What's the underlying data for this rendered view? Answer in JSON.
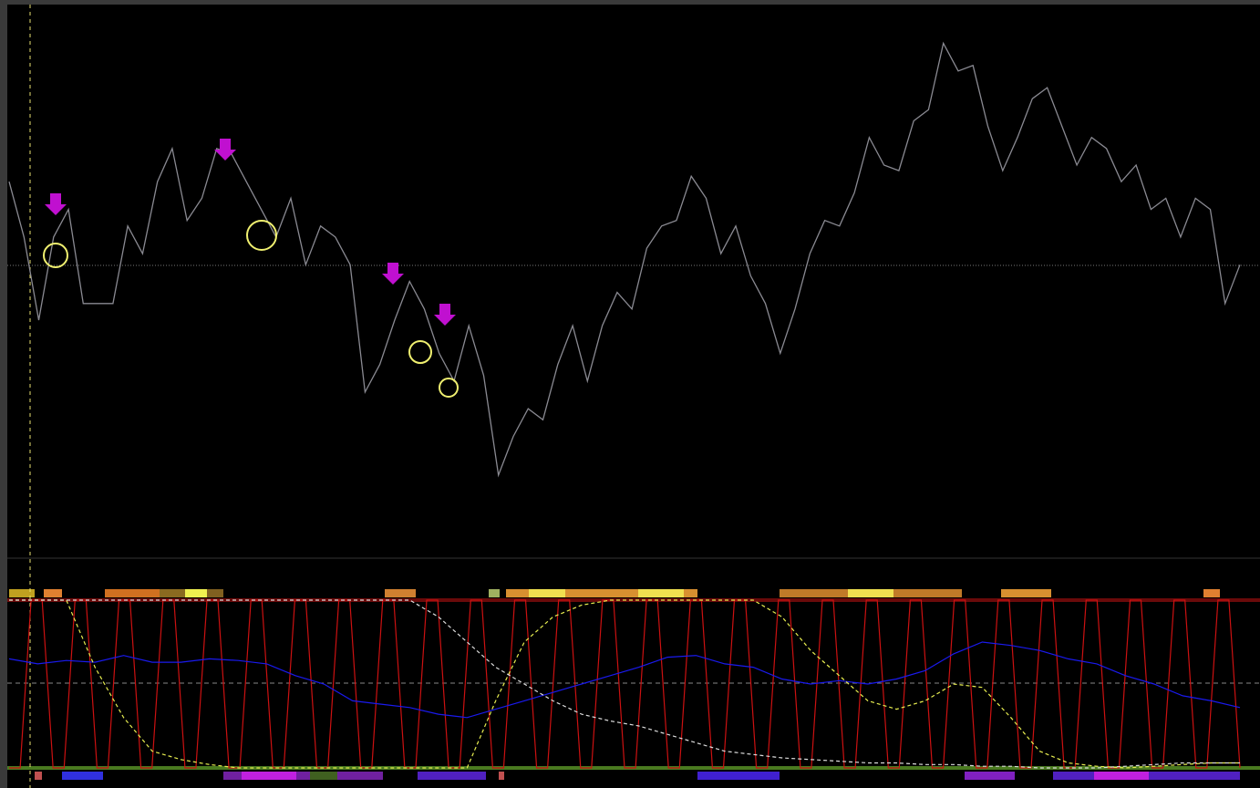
{
  "chart_data": [
    {
      "type": "line",
      "ylim": [
        0,
        100
      ],
      "series": [
        {
          "color": "#8a8a92",
          "values": [
            68,
            58,
            43,
            58,
            63,
            46,
            46,
            46,
            60,
            55,
            68,
            74,
            61,
            65,
            74,
            73,
            68,
            63,
            58,
            65,
            53,
            60,
            58,
            53,
            30,
            35,
            43,
            50,
            45,
            37,
            32,
            42,
            33,
            15,
            22,
            27,
            25,
            35,
            42,
            32,
            42,
            48,
            45,
            56,
            60,
            61,
            69,
            65,
            55,
            60,
            51,
            46,
            37,
            45,
            55,
            61,
            60,
            66,
            76,
            71,
            70,
            79,
            81,
            93,
            88,
            89,
            78,
            70,
            76,
            83,
            85,
            78,
            71,
            76,
            74,
            68,
            71,
            63,
            65,
            58,
            65,
            63,
            46,
            53
          ]
        }
      ]
    },
    {
      "type": "line",
      "ylim": [
        0,
        100
      ],
      "series": [
        {
          "color": "#cc1111",
          "values": [
            0,
            0,
            100,
            100,
            0,
            0,
            100,
            100,
            0,
            0,
            100,
            100,
            0,
            0,
            100,
            100,
            0,
            0,
            100,
            100,
            0,
            0,
            100,
            100,
            0,
            0,
            100,
            100,
            0,
            0,
            100,
            100,
            0,
            0,
            100,
            100,
            0,
            0,
            100,
            100,
            0,
            0,
            100,
            100,
            0,
            0,
            100,
            100,
            0,
            0,
            100,
            100,
            0,
            0,
            100,
            100,
            0,
            0,
            100,
            100,
            0,
            0,
            100,
            100,
            0,
            0,
            100,
            100,
            0,
            0,
            100,
            100,
            0,
            0,
            100,
            100,
            0,
            0,
            100,
            100,
            0,
            0,
            100,
            100,
            0,
            0,
            100,
            100,
            0,
            0,
            100,
            100,
            0,
            0,
            100,
            100,
            0,
            0,
            100,
            100,
            0,
            0,
            100,
            100,
            0,
            0,
            100,
            100,
            0,
            0,
            100,
            100,
            0
          ]
        },
        {
          "color": "#1a1aee",
          "values": [
            65,
            62,
            64,
            63,
            67,
            63,
            63,
            65,
            64,
            62,
            55,
            50,
            40,
            38,
            36,
            32,
            30,
            35,
            40,
            45,
            50,
            55,
            60,
            66,
            67,
            62,
            60,
            53,
            50,
            52,
            50,
            53,
            58,
            68,
            75,
            73,
            70,
            65,
            62,
            55,
            50,
            43,
            40,
            36
          ]
        },
        {
          "color": "#e8ee50",
          "dash": true,
          "values": [
            100,
            100,
            100,
            60,
            30,
            10,
            5,
            2,
            0,
            0,
            0,
            0,
            0,
            0,
            0,
            0,
            0,
            40,
            75,
            90,
            97,
            100,
            100,
            100,
            100,
            100,
            100,
            90,
            70,
            55,
            40,
            35,
            40,
            50,
            48,
            30,
            10,
            3,
            1,
            0,
            1,
            2,
            3,
            3
          ]
        },
        {
          "color": "#dddddd",
          "dash": true,
          "values": [
            100,
            100,
            100,
            100,
            100,
            100,
            100,
            100,
            100,
            100,
            100,
            100,
            100,
            100,
            100,
            90,
            75,
            60,
            50,
            40,
            32,
            28,
            25,
            20,
            15,
            10,
            8,
            6,
            5,
            4,
            3,
            3,
            2,
            2,
            1,
            1,
            0,
            0,
            0,
            1,
            2,
            3,
            3,
            3
          ]
        }
      ]
    }
  ]
}
